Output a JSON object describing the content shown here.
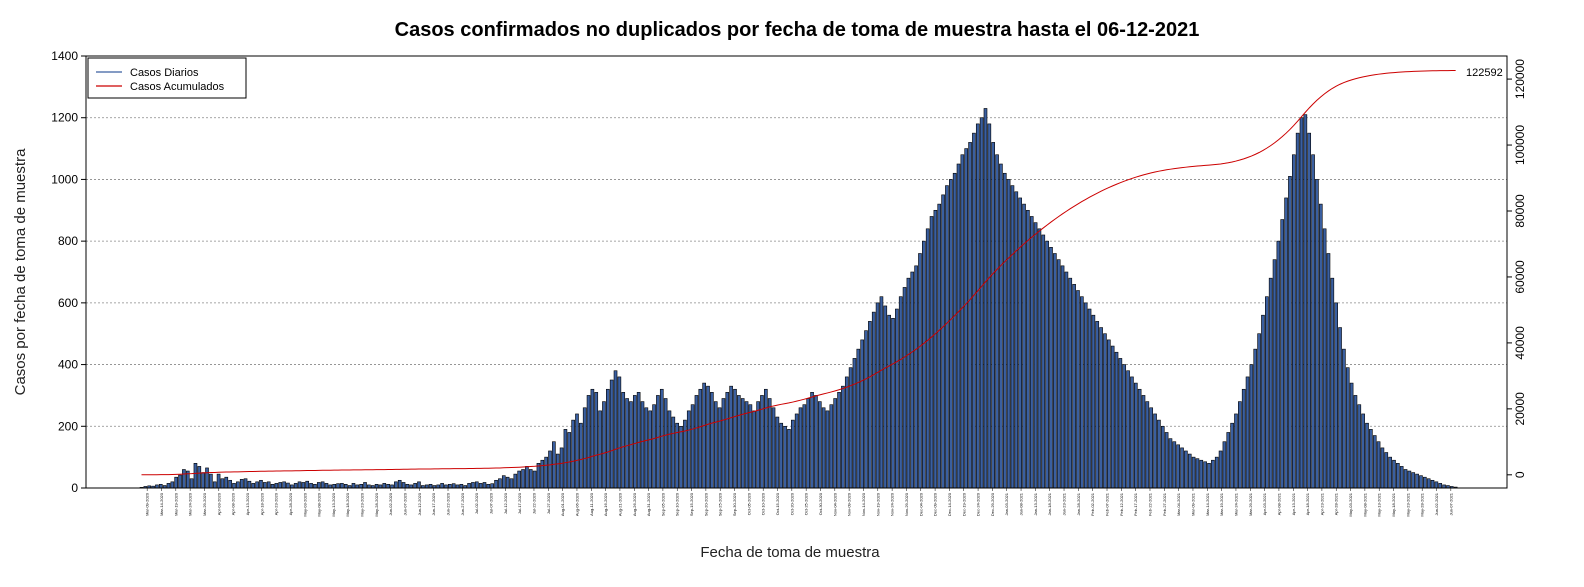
{
  "chart_data": {
    "type": "bar",
    "title": "Casos confirmados no duplicados por fecha de toma de muestra hasta el 06-12-2021",
    "xlabel": "Fecha de toma de muestra",
    "ylabel": "Casos por fecha de toma de muestra",
    "ylim": [
      0,
      1400
    ],
    "yticks": [
      0,
      200,
      400,
      600,
      800,
      1000,
      1200,
      1400
    ],
    "y2lim": [
      -4000,
      127000
    ],
    "y2ticks": [
      0,
      20000,
      40000,
      60000,
      80000,
      100000,
      120000
    ],
    "grid": "horizontal-dotted",
    "legend_position": "top-left",
    "series": [
      {
        "name": "Casos Diarios",
        "color": "#3a5fa0",
        "kind": "bar"
      },
      {
        "name": "Casos Acumulados",
        "color": "#cc0000",
        "kind": "line",
        "axis": "right"
      }
    ],
    "end_label": "122592",
    "x_tick_labels": [
      "Mar-09-2020",
      "Mar-14-2020",
      "Mar-19-2020",
      "Mar-24-2020",
      "Mar-29-2020",
      "Apr-03-2020",
      "Apr-08-2020",
      "Apr-13-2020",
      "Apr-18-2020",
      "Apr-23-2020",
      "Apr-28-2020",
      "May-03-2020",
      "May-08-2020",
      "May-13-2020",
      "May-18-2020",
      "May-23-2020",
      "May-28-2020",
      "Jun-02-2020",
      "Jun-07-2020",
      "Jun-12-2020",
      "Jun-17-2020",
      "Jun-22-2020",
      "Jun-27-2020",
      "Jul-02-2020",
      "Jul-07-2020",
      "Jul-12-2020",
      "Jul-17-2020",
      "Jul-22-2020",
      "Jul-27-2020",
      "Aug-01-2020",
      "Aug-06-2020",
      "Aug-11-2020",
      "Aug-16-2020",
      "Aug-21-2020",
      "Aug-26-2020",
      "Aug-31-2020",
      "Sep-05-2020",
      "Sep-10-2020",
      "Sep-15-2020",
      "Sep-20-2020",
      "Sep-25-2020",
      "Sep-30-2020",
      "Oct-05-2020",
      "Oct-10-2020",
      "Oct-15-2020",
      "Oct-20-2020",
      "Oct-25-2020",
      "Oct-30-2020",
      "Nov-04-2020",
      "Nov-09-2020",
      "Nov-14-2020",
      "Nov-19-2020",
      "Nov-24-2020",
      "Nov-29-2020",
      "Dec-04-2020",
      "Dec-09-2020",
      "Dec-14-2020",
      "Dec-19-2020",
      "Dec-24-2020",
      "Dec-29-2020",
      "Jan-03-2021",
      "Jan-08-2021",
      "Jan-13-2021",
      "Jan-18-2021",
      "Jan-23-2021",
      "Jan-28-2021",
      "Feb-02-2021",
      "Feb-07-2021",
      "Feb-12-2021",
      "Feb-17-2021",
      "Feb-22-2021",
      "Feb-27-2021",
      "Mar-04-2021",
      "Mar-09-2021",
      "Mar-14-2021",
      "Mar-19-2021",
      "Mar-24-2021",
      "Mar-29-2021",
      "Apr-03-2021",
      "Apr-08-2021",
      "Apr-13-2021",
      "Apr-18-2021",
      "Apr-23-2021",
      "Apr-28-2021",
      "May-03-2021",
      "May-08-2021",
      "May-13-2021",
      "May-18-2021",
      "May-23-2021",
      "May-28-2021",
      "Jun-02-2021",
      "Jun-07-2021"
    ],
    "daily_cases": [
      2,
      5,
      7,
      6,
      10,
      12,
      8,
      15,
      20,
      35,
      42,
      60,
      55,
      30,
      80,
      70,
      50,
      65,
      45,
      20,
      45,
      30,
      35,
      25,
      15,
      20,
      28,
      30,
      22,
      15,
      20,
      25,
      18,
      20,
      12,
      15,
      18,
      20,
      16,
      10,
      15,
      20,
      18,
      22,
      15,
      12,
      18,
      20,
      15,
      10,
      12,
      14,
      15,
      12,
      8,
      15,
      10,
      12,
      18,
      10,
      8,
      12,
      10,
      15,
      12,
      10,
      20,
      25,
      18,
      12,
      10,
      15,
      20,
      8,
      10,
      12,
      8,
      10,
      15,
      10,
      12,
      14,
      10,
      12,
      8,
      15,
      18,
      20,
      15,
      18,
      12,
      14,
      25,
      30,
      40,
      35,
      30,
      45,
      55,
      60,
      70,
      60,
      55,
      80,
      90,
      100,
      120,
      150,
      110,
      130,
      190,
      180,
      220,
      240,
      210,
      260,
      300,
      320,
      310,
      250,
      280,
      320,
      350,
      380,
      360,
      310,
      290,
      280,
      300,
      310,
      280,
      260,
      250,
      270,
      300,
      320,
      290,
      250,
      230,
      210,
      200,
      220,
      250,
      270,
      300,
      320,
      340,
      330,
      310,
      280,
      260,
      290,
      310,
      330,
      320,
      300,
      290,
      280,
      270,
      250,
      280,
      300,
      320,
      290,
      260,
      230,
      210,
      200,
      190,
      220,
      240,
      260,
      270,
      290,
      310,
      300,
      280,
      260,
      250,
      270,
      290,
      310,
      330,
      360,
      390,
      420,
      450,
      480,
      510,
      540,
      570,
      600,
      620,
      590,
      560,
      550,
      580,
      620,
      650,
      680,
      700,
      720,
      760,
      800,
      840,
      880,
      900,
      920,
      950,
      980,
      1000,
      1020,
      1050,
      1080,
      1100,
      1120,
      1150,
      1180,
      1200,
      1230,
      1180,
      1120,
      1080,
      1050,
      1020,
      1000,
      980,
      960,
      940,
      920,
      900,
      880,
      860,
      840,
      820,
      800,
      780,
      760,
      740,
      720,
      700,
      680,
      660,
      640,
      620,
      600,
      580,
      560,
      540,
      520,
      500,
      480,
      460,
      440,
      420,
      400,
      380,
      360,
      340,
      320,
      300,
      280,
      260,
      240,
      220,
      200,
      180,
      160,
      150,
      140,
      130,
      120,
      110,
      100,
      95,
      90,
      85,
      80,
      90,
      100,
      120,
      150,
      180,
      210,
      240,
      280,
      320,
      360,
      400,
      450,
      500,
      560,
      620,
      680,
      740,
      800,
      870,
      940,
      1010,
      1080,
      1150,
      1200,
      1210,
      1150,
      1080,
      1000,
      920,
      840,
      760,
      680,
      600,
      520,
      450,
      390,
      340,
      300,
      270,
      240,
      210,
      190,
      170,
      150,
      130,
      115,
      100,
      90,
      80,
      70,
      60,
      55,
      50,
      45,
      40,
      35,
      30,
      25,
      20,
      15,
      10,
      8,
      5,
      3
    ]
  }
}
